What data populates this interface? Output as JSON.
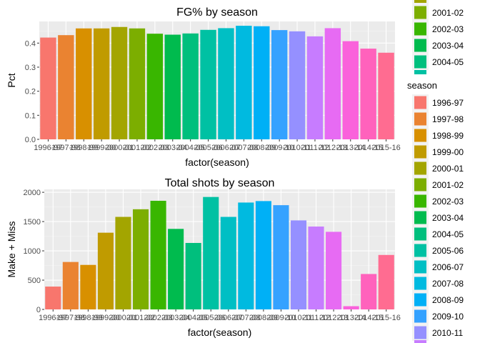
{
  "chart_data": [
    {
      "type": "bar",
      "title": "FG% by season",
      "xlabel": "factor(season)",
      "ylabel": "Pct",
      "ylim": [
        0,
        0.49
      ],
      "yticks": [
        "0.0",
        "0.1",
        "0.2",
        "0.3",
        "0.4"
      ],
      "categories": [
        "1996-97",
        "1997-98",
        "1998-99",
        "1999-00",
        "2000-01",
        "2001-02",
        "2002-03",
        "2003-04",
        "2004-05",
        "2005-06",
        "2006-07",
        "2007-08",
        "2008-09",
        "2009-10",
        "2010-11",
        "2011-12",
        "2012-13",
        "2013-14",
        "2014-15",
        "2015-16"
      ],
      "tick_labels": [
        "1996-97",
        "1997-98",
        "1998-99",
        "1999-00",
        "2000-01",
        "2001-02",
        "2002-03",
        "2003-04",
        "2004-05",
        "2005-06",
        "2006-07",
        "2007-08",
        "2008-09",
        "2009-10",
        "2010-11",
        "2011-12",
        "2012-13",
        "2013-14",
        "2014-15",
        "2015-16"
      ],
      "values": [
        0.423,
        0.433,
        0.461,
        0.461,
        0.467,
        0.461,
        0.439,
        0.435,
        0.44,
        0.455,
        0.462,
        0.472,
        0.47,
        0.454,
        0.449,
        0.428,
        0.462,
        0.408,
        0.377,
        0.36
      ],
      "grid": true
    },
    {
      "type": "bar",
      "title": "Total shots by season",
      "xlabel": "factor(season)",
      "ylabel": "Make + Miss",
      "ylim": [
        0,
        2050
      ],
      "yticks": [
        "0",
        "500",
        "1000",
        "1500",
        "2000"
      ],
      "categories": [
        "1996-97",
        "1997-98",
        "1998-99",
        "1999-00",
        "2000-01",
        "2001-02",
        "2002-03",
        "2003-04",
        "2004-05",
        "2005-06",
        "2006-07",
        "2007-08",
        "2008-09",
        "2009-10",
        "2010-11",
        "2011-12",
        "2012-13",
        "2013-14",
        "2014-15",
        "2015-16"
      ],
      "tick_labels": [
        "1996-97",
        "1997-98",
        "1998-99",
        "1999-00",
        "2000-01",
        "2001-02",
        "2002-03",
        "2003-04",
        "2004-05",
        "2005-06",
        "2006-07",
        "2007-08",
        "2008-09",
        "2009-10",
        "2010-11",
        "2011-12",
        "2012-13",
        "2013-14",
        "2014-15",
        "2015-16"
      ],
      "values": [
        390,
        810,
        760,
        1310,
        1580,
        1710,
        1855,
        1375,
        1135,
        1920,
        1580,
        1825,
        1850,
        1780,
        1520,
        1415,
        1325,
        55,
        605,
        930
      ],
      "grid": true
    }
  ],
  "colors": [
    "#F8766D",
    "#EA8331",
    "#D89000",
    "#C09B00",
    "#A3A500",
    "#7CAE00",
    "#39B600",
    "#00BB4E",
    "#00BF7D",
    "#00C1A3",
    "#00BFC4",
    "#00BAE0",
    "#00B0F6",
    "#35A2FF",
    "#9590FF",
    "#C77CFF",
    "#E76BF3",
    "#FA62DB",
    "#FF62BC",
    "#FF6C91"
  ],
  "legend_top": {
    "entries": [
      {
        "label": "2001-02",
        "color": "#7CAE00"
      },
      {
        "label": "2002-03",
        "color": "#39B600"
      },
      {
        "label": "2003-04",
        "color": "#00BB4E"
      },
      {
        "label": "2004-05",
        "color": "#00BF7D"
      }
    ]
  },
  "legend_bottom": {
    "title": "season",
    "entries": [
      {
        "label": "1996-97",
        "color": "#F8766D"
      },
      {
        "label": "1997-98",
        "color": "#EA8331"
      },
      {
        "label": "1998-99",
        "color": "#D89000"
      },
      {
        "label": "1999-00",
        "color": "#C09B00"
      },
      {
        "label": "2000-01",
        "color": "#A3A500"
      },
      {
        "label": "2001-02",
        "color": "#7CAE00"
      },
      {
        "label": "2002-03",
        "color": "#39B600"
      },
      {
        "label": "2003-04",
        "color": "#00BB4E"
      },
      {
        "label": "2004-05",
        "color": "#00BF7D"
      },
      {
        "label": "2005-06",
        "color": "#00C1A3"
      },
      {
        "label": "2006-07",
        "color": "#00BFC4"
      },
      {
        "label": "2007-08",
        "color": "#00BAE0"
      },
      {
        "label": "2008-09",
        "color": "#00B0F6"
      },
      {
        "label": "2009-10",
        "color": "#35A2FF"
      },
      {
        "label": "2010-11",
        "color": "#9590FF"
      }
    ]
  }
}
